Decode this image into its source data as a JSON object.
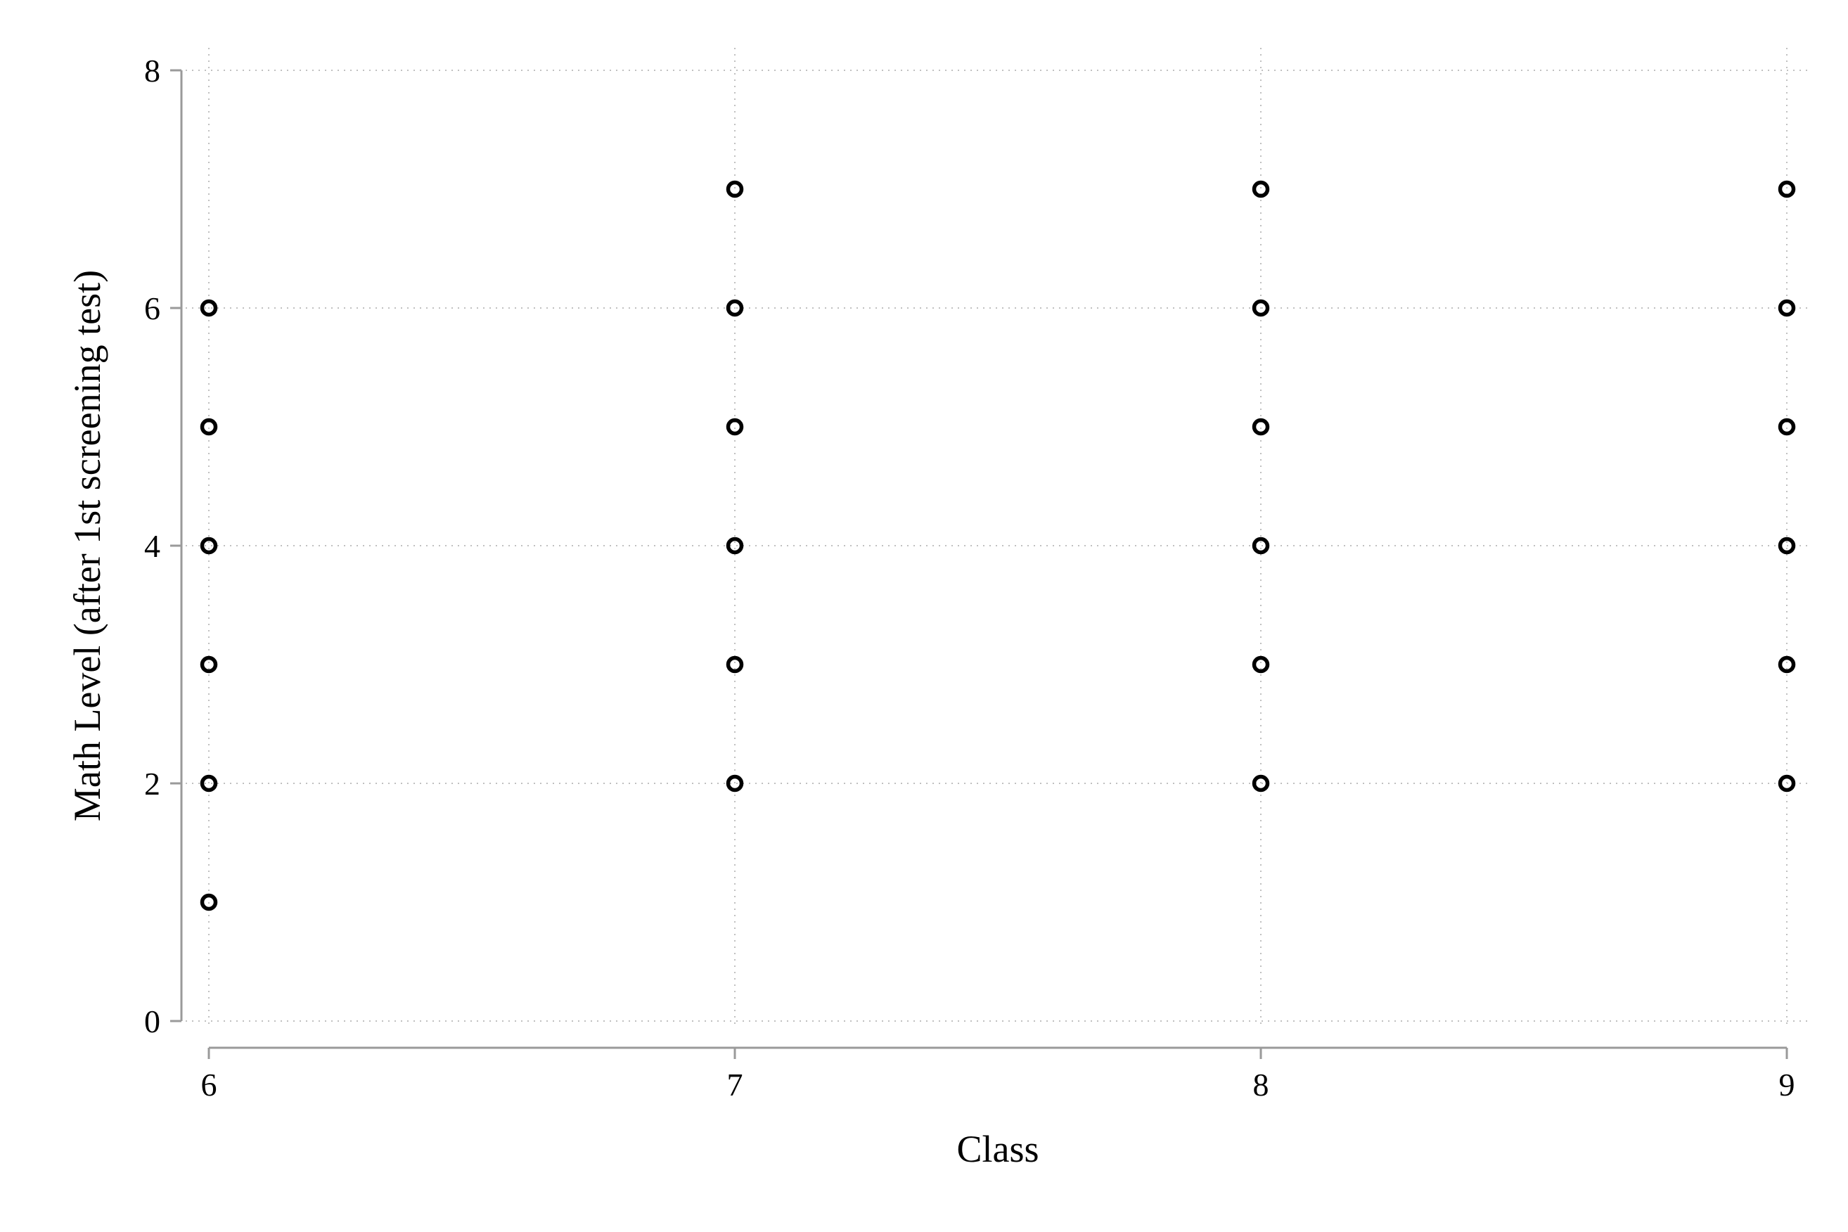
{
  "chart_data": {
    "type": "scatter",
    "title": "",
    "xlabel": "Class",
    "ylabel": "Math Level (after 1st screening test)",
    "xlim": [
      6,
      9
    ],
    "ylim": [
      0,
      8
    ],
    "x_ticks": [
      6,
      7,
      8,
      9
    ],
    "y_ticks": [
      0,
      2,
      4,
      6,
      8
    ],
    "grid": true,
    "legend": "none",
    "marker": "hollow-circle",
    "marker_color": "#000000",
    "points": [
      {
        "x": 6,
        "y": 1
      },
      {
        "x": 6,
        "y": 2
      },
      {
        "x": 6,
        "y": 3
      },
      {
        "x": 6,
        "y": 4
      },
      {
        "x": 6,
        "y": 5
      },
      {
        "x": 6,
        "y": 6
      },
      {
        "x": 7,
        "y": 2
      },
      {
        "x": 7,
        "y": 3
      },
      {
        "x": 7,
        "y": 4
      },
      {
        "x": 7,
        "y": 5
      },
      {
        "x": 7,
        "y": 6
      },
      {
        "x": 7,
        "y": 7
      },
      {
        "x": 8,
        "y": 2
      },
      {
        "x": 8,
        "y": 3
      },
      {
        "x": 8,
        "y": 4
      },
      {
        "x": 8,
        "y": 5
      },
      {
        "x": 8,
        "y": 6
      },
      {
        "x": 8,
        "y": 7
      },
      {
        "x": 9,
        "y": 2
      },
      {
        "x": 9,
        "y": 3
      },
      {
        "x": 9,
        "y": 4
      },
      {
        "x": 9,
        "y": 5
      },
      {
        "x": 9,
        "y": 6
      },
      {
        "x": 9,
        "y": 7
      }
    ]
  }
}
